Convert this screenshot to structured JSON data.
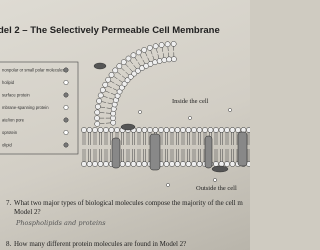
{
  "header": {
    "title": "del 2 – The Selectively Permeable Cell Membrane"
  },
  "legend": {
    "items": [
      "nonpolar or small polar molecules",
      "holipid",
      "surface protein",
      "mbrane-spanning protein",
      "ate/ion pore",
      "oprotein",
      "olipid"
    ]
  },
  "diagram": {
    "inside_label": "Inside the cell",
    "outside_label": "Outside the cell"
  },
  "questions": [
    {
      "number": "7.",
      "text": "What two major types of biological molecules compose the majority of the cell m",
      "text2": "Model 2?",
      "answer": "Phospholipids and proteins"
    },
    {
      "number": "8.",
      "text": "How many different protein molecules are found in Model 2?"
    }
  ]
}
